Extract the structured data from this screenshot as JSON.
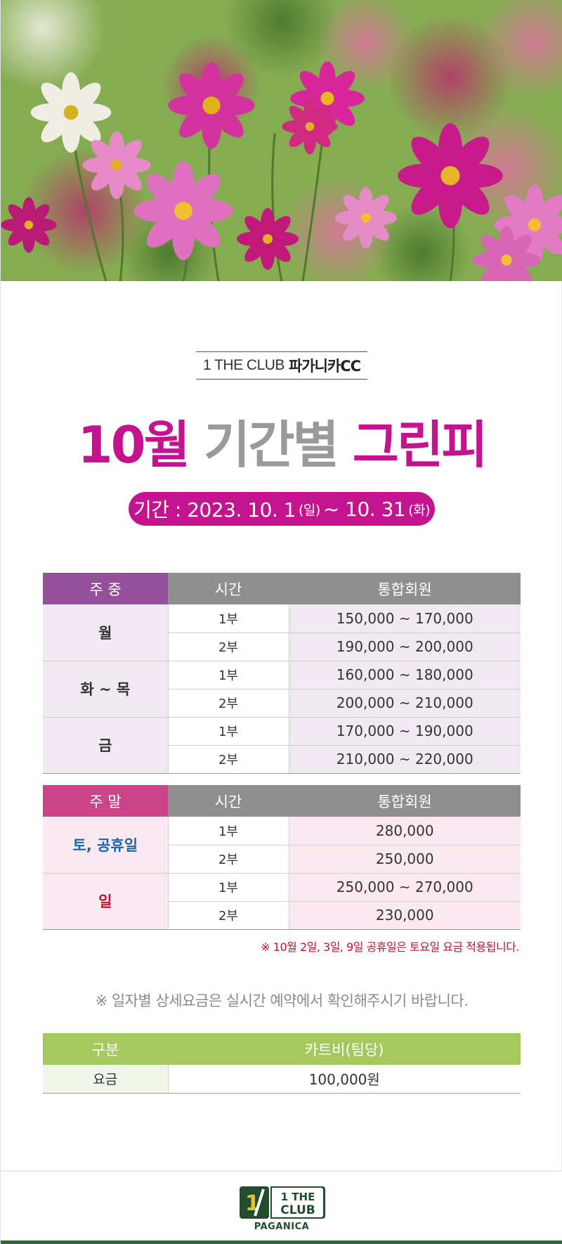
{
  "brand": {
    "prefix": "1 THE CLUB",
    "name": "파가니카CC"
  },
  "title": {
    "month": "10월",
    "middle": "기간별",
    "end": "그린피"
  },
  "period": {
    "label": "기간 : 2023. 10. 1",
    "start_day": "(일)",
    "separator": "~ 10. 31",
    "end_day": "(화)"
  },
  "weekday": {
    "headers": [
      "주 중",
      "시간",
      "통합회원"
    ],
    "groups": [
      {
        "day": "월",
        "rows": [
          {
            "time": "1부",
            "price": "150,000 ~ 170,000"
          },
          {
            "time": "2부",
            "price": "190,000 ~ 200,000"
          }
        ]
      },
      {
        "day": "화 ~ 목",
        "rows": [
          {
            "time": "1부",
            "price": "160,000 ~ 180,000"
          },
          {
            "time": "2부",
            "price": "200,000 ~ 210,000"
          }
        ]
      },
      {
        "day": "금",
        "rows": [
          {
            "time": "1부",
            "price": "170,000 ~ 190,000"
          },
          {
            "time": "2부",
            "price": "210,000 ~ 220,000"
          }
        ]
      }
    ]
  },
  "weekend": {
    "headers": [
      "주 말",
      "시간",
      "통합회원"
    ],
    "groups": [
      {
        "day": "토, 공휴일",
        "rows": [
          {
            "time": "1부",
            "price": "280,000"
          },
          {
            "time": "2부",
            "price": "250,000"
          }
        ]
      },
      {
        "day": "일",
        "rows": [
          {
            "time": "1부",
            "price": "250,000 ~ 270,000"
          },
          {
            "time": "2부",
            "price": "230,000"
          }
        ]
      }
    ]
  },
  "holiday_note": "※ 10월 2일, 3일, 9일 공휴일은 토요일 요금 적용됩니다.",
  "detail_note": "※ 일자별 상세요금은 실시간 예약에서 확인해주시기 바랍니다.",
  "cart": {
    "headers": [
      "구분",
      "카트비(팀당)"
    ],
    "row": {
      "label": "요금",
      "price": "100,000원"
    }
  },
  "footer": {
    "logo_line1": "1 THE",
    "logo_line2": "CLUB",
    "logo_sub": "PAGANICA"
  },
  "colors": {
    "magenta": "#c4138e",
    "weekday_header": "#95509a",
    "weekend_header": "#cc4488",
    "cart_header": "#a6c95f",
    "footer_green": "#2d6b3a"
  }
}
